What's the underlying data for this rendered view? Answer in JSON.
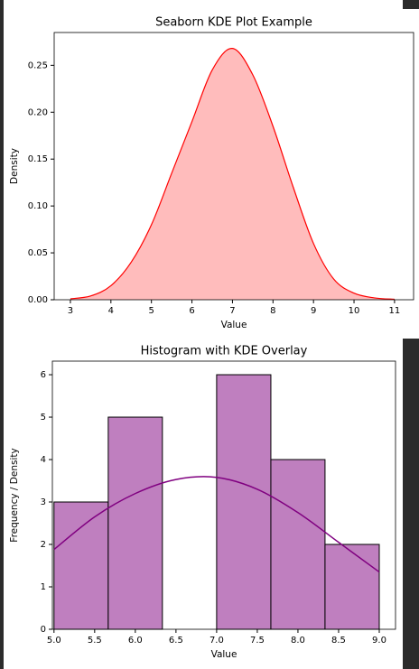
{
  "chart_data": [
    {
      "type": "kde",
      "title": "Seaborn KDE Plot Example",
      "xlabel": "Value",
      "ylabel": "Density",
      "x": [
        3,
        3.5,
        4,
        4.5,
        5,
        5.5,
        6,
        6.5,
        7,
        7.5,
        8,
        8.5,
        9,
        9.5,
        10,
        10.5,
        11
      ],
      "values": [
        0.001,
        0.004,
        0.015,
        0.04,
        0.08,
        0.135,
        0.19,
        0.245,
        0.268,
        0.24,
        0.185,
        0.12,
        0.06,
        0.022,
        0.007,
        0.002,
        0.0005
      ],
      "color": "#ff0000",
      "fill": "#ffbcbc",
      "xlim": [
        2.6,
        11.47
      ],
      "ylim": [
        0,
        0.285
      ],
      "xticks": [
        3,
        4,
        5,
        6,
        7,
        8,
        9,
        10,
        11
      ],
      "yticks": [
        {
          "value": 0,
          "label": "0.00"
        },
        {
          "value": 0.05,
          "label": "0.05"
        },
        {
          "value": 0.1,
          "label": "0.10"
        },
        {
          "value": 0.15,
          "label": "0.15"
        },
        {
          "value": 0.2,
          "label": "0.20"
        },
        {
          "value": 0.25,
          "label": "0.25"
        }
      ]
    },
    {
      "type": "histogram",
      "title": "Histogram with KDE Overlay",
      "xlabel": "Value",
      "ylabel": "Frequency / Density",
      "bins": [
        5,
        5.667,
        6.333,
        7,
        7.667,
        8.333,
        9
      ],
      "values": [
        3,
        5,
        0,
        6,
        4,
        2
      ],
      "color": "#bf7fbf",
      "edgecolor": "#000000",
      "kde": {
        "x": [
          5,
          5.5,
          6,
          6.5,
          7,
          7.5,
          8,
          8.5,
          9
        ],
        "values": [
          1.88,
          2.65,
          3.2,
          3.53,
          3.58,
          3.3,
          2.75,
          2.05,
          1.35
        ],
        "color": "#800080"
      },
      "xlim": [
        4.98,
        9.2
      ],
      "ylim": [
        0,
        6.32
      ],
      "xticks": [
        {
          "value": 5,
          "label": "5.0"
        },
        {
          "value": 5.5,
          "label": "5.5"
        },
        {
          "value": 6,
          "label": "6.0"
        },
        {
          "value": 6.5,
          "label": "6.5"
        },
        {
          "value": 7,
          "label": "7.0"
        },
        {
          "value": 7.5,
          "label": "7.5"
        },
        {
          "value": 8,
          "label": "8.0"
        },
        {
          "value": 8.5,
          "label": "8.5"
        },
        {
          "value": 9,
          "label": "9.0"
        }
      ],
      "yticks": [
        0,
        1,
        2,
        3,
        4,
        5,
        6
      ]
    }
  ]
}
